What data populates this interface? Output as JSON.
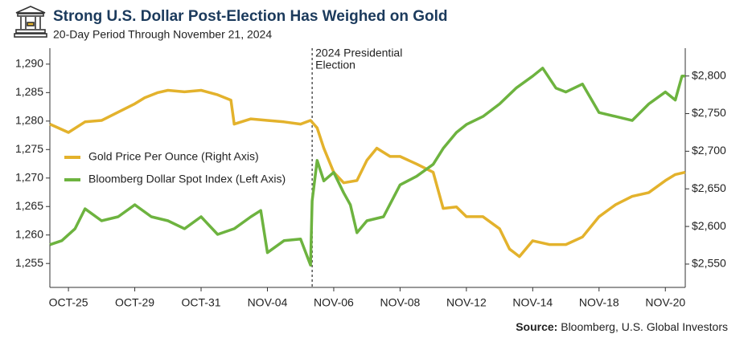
{
  "chart_data": {
    "type": "line",
    "title": "Strong U.S. Dollar Post-Election Has Weighed on Gold",
    "subtitle": "20-Day Period Through November 21, 2024",
    "source_label": "Source:",
    "source": "Bloomberg, U.S. Global Investors",
    "annotation": {
      "x": 8.35,
      "lines": [
        "2024 Presidential",
        "Election"
      ]
    },
    "legend": "middle-left",
    "xlim": [
      0.44,
      19.6
    ],
    "xticks": [
      {
        "value": 1,
        "label": "OCT-25"
      },
      {
        "value": 3,
        "label": "OCT-29"
      },
      {
        "value": 5,
        "label": "OCT-31"
      },
      {
        "value": 7,
        "label": "NOV-04"
      },
      {
        "value": 9,
        "label": "NOV-06"
      },
      {
        "value": 11,
        "label": "NOV-08"
      },
      {
        "value": 13,
        "label": "NOV-12"
      },
      {
        "value": 15,
        "label": "NOV-14"
      },
      {
        "value": 17,
        "label": "NOV-18"
      },
      {
        "value": 19,
        "label": "NOV-20"
      }
    ],
    "ylim": [
      1250.8,
      1292.8
    ],
    "yticks": [
      {
        "value": 1255,
        "label": "1,255"
      },
      {
        "value": 1260,
        "label": "1,260"
      },
      {
        "value": 1265,
        "label": "1,265"
      },
      {
        "value": 1270,
        "label": "1,270"
      },
      {
        "value": 1275,
        "label": "1,275"
      },
      {
        "value": 1280,
        "label": "1,280"
      },
      {
        "value": 1285,
        "label": "1,285"
      },
      {
        "value": 1290,
        "label": "1,290"
      }
    ],
    "y2lim": [
      2519,
      2837
    ],
    "y2ticks": [
      {
        "value": 2550,
        "label": "$2,550"
      },
      {
        "value": 2600,
        "label": "$2,600"
      },
      {
        "value": 2650,
        "label": "$2,650"
      },
      {
        "value": 2700,
        "label": "$2,700"
      },
      {
        "value": 2750,
        "label": "$2,750"
      },
      {
        "value": 2800,
        "label": "$2,800"
      }
    ],
    "series": [
      {
        "name": "Gold Price Per Ounce (Right Axis)",
        "color": "#e3b22c",
        "axis": "y2",
        "x": [
          0.44,
          1.0,
          1.5,
          2.0,
          2.5,
          3.0,
          3.3,
          3.7,
          4.0,
          4.5,
          5.0,
          5.5,
          5.9,
          6.0,
          6.5,
          7.0,
          7.5,
          8.0,
          8.3,
          8.5,
          8.7,
          9.0,
          9.3,
          9.7,
          10.0,
          10.3,
          10.7,
          11.0,
          11.5,
          12.0,
          12.3,
          12.7,
          13.0,
          13.5,
          14.0,
          14.3,
          14.6,
          15.0,
          15.5,
          16.0,
          16.5,
          17.0,
          17.5,
          18.0,
          18.5,
          19.0,
          19.3,
          19.6
        ],
        "values": [
          2736,
          2725,
          2739,
          2741,
          2752,
          2763,
          2771,
          2778,
          2781,
          2779,
          2781,
          2775,
          2768,
          2736,
          2743,
          2741,
          2739,
          2736,
          2741,
          2731,
          2704,
          2672,
          2658,
          2661,
          2688,
          2704,
          2693,
          2693,
          2683,
          2672,
          2624,
          2626,
          2613,
          2613,
          2597,
          2570,
          2560,
          2581,
          2576,
          2576,
          2586,
          2613,
          2629,
          2640,
          2645,
          2661,
          2669,
          2672
        ]
      },
      {
        "name": "Bloomberg Dollar Spot Index (Left Axis)",
        "color": "#6db33f",
        "x": [
          0.44,
          0.8,
          1.2,
          1.5,
          2.0,
          2.5,
          3.0,
          3.5,
          4.0,
          4.5,
          5.0,
          5.5,
          6.0,
          6.5,
          6.8,
          7.0,
          7.5,
          8.0,
          8.3,
          8.35,
          8.5,
          8.7,
          9.0,
          9.3,
          9.5,
          9.7,
          10.0,
          10.5,
          11.0,
          11.5,
          12.0,
          12.3,
          12.7,
          13.0,
          13.5,
          14.0,
          14.5,
          15.0,
          15.3,
          15.7,
          16.0,
          16.5,
          17.0,
          17.5,
          18.0,
          18.5,
          19.0,
          19.3,
          19.5,
          19.6
        ],
        "values": [
          1258.3,
          1259,
          1261.1,
          1264.6,
          1262.5,
          1263.2,
          1265.3,
          1263.2,
          1262.5,
          1261.1,
          1263.2,
          1260.1,
          1261.1,
          1263.2,
          1264.3,
          1256.9,
          1259,
          1259.3,
          1254.7,
          1266,
          1273.1,
          1269.5,
          1271,
          1267.4,
          1265.3,
          1260.4,
          1262.5,
          1263.2,
          1268.8,
          1270.3,
          1272.4,
          1275.2,
          1278,
          1279.4,
          1280.8,
          1283,
          1285.8,
          1287.9,
          1289.3,
          1285.8,
          1285.1,
          1286.5,
          1281.5,
          1280.8,
          1280.1,
          1283,
          1285.1,
          1283.7,
          1287.9,
          1287.9
        ]
      }
    ]
  }
}
